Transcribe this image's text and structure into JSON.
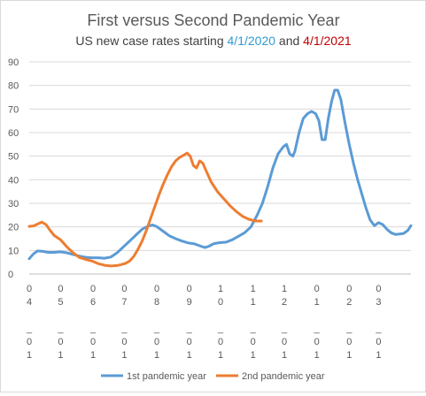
{
  "chart_data": {
    "type": "line",
    "title": "First versus Second Pandemic Year",
    "subtitle": {
      "prefix": "US new case rates starting ",
      "date1": "4/1/2020",
      "joiner": " and ",
      "date2": "4/1/2021"
    },
    "subtitle_colors": {
      "text": "#404040",
      "date1": "#2e9bd2",
      "date2": "#c00000"
    },
    "xlabel": "",
    "ylabel": "",
    "ylim": [
      0,
      90
    ],
    "yticks": [
      0,
      10,
      20,
      30,
      40,
      50,
      60,
      70,
      80,
      90
    ],
    "x_unit": "day index from start date (0 = April 1)",
    "x_range": [
      0,
      365
    ],
    "xticks": [
      {
        "x": 0,
        "lines": [
          "0",
          "4",
          "",
          "_",
          "0",
          "1"
        ]
      },
      {
        "x": 30,
        "lines": [
          "0",
          "5",
          "",
          "_",
          "0",
          "1"
        ]
      },
      {
        "x": 61,
        "lines": [
          "0",
          "6",
          "",
          "_",
          "0",
          "1"
        ]
      },
      {
        "x": 91,
        "lines": [
          "0",
          "7",
          "",
          "_",
          "0",
          "1"
        ]
      },
      {
        "x": 122,
        "lines": [
          "0",
          "8",
          "",
          "_",
          "0",
          "1"
        ]
      },
      {
        "x": 153,
        "lines": [
          "0",
          "9",
          "",
          "_",
          "0",
          "1"
        ]
      },
      {
        "x": 183,
        "lines": [
          "1",
          "0",
          "",
          "_",
          "0",
          "1"
        ]
      },
      {
        "x": 214,
        "lines": [
          "1",
          "1",
          "",
          "_",
          "0",
          "1"
        ]
      },
      {
        "x": 244,
        "lines": [
          "1",
          "2",
          "",
          "_",
          "0",
          "1"
        ]
      },
      {
        "x": 275,
        "lines": [
          "0",
          "1",
          "",
          "_",
          "0",
          "1"
        ]
      },
      {
        "x": 306,
        "lines": [
          "0",
          "2",
          "",
          "_",
          "0",
          "1"
        ]
      },
      {
        "x": 334,
        "lines": [
          "0",
          "3",
          "",
          "_",
          "0",
          "1"
        ]
      }
    ],
    "grid": "horizontal",
    "legend_position": "bottom",
    "series": [
      {
        "name": "1st pandemic year",
        "color": "#5b9bd5",
        "points": [
          [
            0,
            6.5
          ],
          [
            4,
            8.5
          ],
          [
            8,
            9.8
          ],
          [
            13,
            9.6
          ],
          [
            18,
            9.2
          ],
          [
            24,
            9.2
          ],
          [
            30,
            9.4
          ],
          [
            36,
            9
          ],
          [
            42,
            8.3
          ],
          [
            48,
            7.6
          ],
          [
            54,
            7.1
          ],
          [
            60,
            6.9
          ],
          [
            66,
            6.9
          ],
          [
            72,
            6.7
          ],
          [
            78,
            7.2
          ],
          [
            84,
            9
          ],
          [
            90,
            11.5
          ],
          [
            96,
            14
          ],
          [
            102,
            16.5
          ],
          [
            108,
            19
          ],
          [
            114,
            20.4
          ],
          [
            118,
            20.8
          ],
          [
            122,
            20.1
          ],
          [
            128,
            18.2
          ],
          [
            134,
            16.2
          ],
          [
            140,
            15
          ],
          [
            146,
            14
          ],
          [
            152,
            13.2
          ],
          [
            158,
            12.8
          ],
          [
            164,
            11.8
          ],
          [
            168,
            11.2
          ],
          [
            172,
            11.8
          ],
          [
            176,
            12.8
          ],
          [
            182,
            13.3
          ],
          [
            188,
            13.5
          ],
          [
            194,
            14.5
          ],
          [
            200,
            16
          ],
          [
            206,
            17.5
          ],
          [
            212,
            20
          ],
          [
            218,
            25
          ],
          [
            223,
            30
          ],
          [
            228,
            37
          ],
          [
            233,
            45
          ],
          [
            238,
            51
          ],
          [
            243,
            54
          ],
          [
            246,
            55
          ],
          [
            249,
            51
          ],
          [
            252,
            50
          ],
          [
            254,
            52
          ],
          [
            258,
            60
          ],
          [
            262,
            66
          ],
          [
            266,
            68
          ],
          [
            270,
            69
          ],
          [
            274,
            68
          ],
          [
            277,
            65
          ],
          [
            280,
            57
          ],
          [
            283,
            57
          ],
          [
            286,
            66
          ],
          [
            289,
            73
          ],
          [
            292,
            78
          ],
          [
            295,
            78
          ],
          [
            298,
            74
          ],
          [
            302,
            64
          ],
          [
            306,
            55
          ],
          [
            310,
            47
          ],
          [
            314,
            40
          ],
          [
            318,
            34
          ],
          [
            322,
            28
          ],
          [
            326,
            23
          ],
          [
            330,
            20.5
          ],
          [
            334,
            21.8
          ],
          [
            338,
            21
          ],
          [
            342,
            19
          ],
          [
            346,
            17.5
          ],
          [
            350,
            16.8
          ],
          [
            354,
            17
          ],
          [
            358,
            17.2
          ],
          [
            362,
            18.5
          ],
          [
            365,
            20.5
          ]
        ]
      },
      {
        "name": "2nd pandemic year",
        "color": "#ed7d31",
        "points": [
          [
            0,
            20.2
          ],
          [
            4,
            20.4
          ],
          [
            8,
            21.2
          ],
          [
            12,
            22
          ],
          [
            16,
            21
          ],
          [
            20,
            18.5
          ],
          [
            24,
            16.3
          ],
          [
            30,
            14.5
          ],
          [
            36,
            11.5
          ],
          [
            42,
            9
          ],
          [
            48,
            7
          ],
          [
            54,
            6.2
          ],
          [
            60,
            5.5
          ],
          [
            66,
            4.4
          ],
          [
            72,
            3.7
          ],
          [
            78,
            3.4
          ],
          [
            84,
            3.6
          ],
          [
            88,
            4
          ],
          [
            92,
            4.5
          ],
          [
            96,
            5.5
          ],
          [
            100,
            7.5
          ],
          [
            104,
            10.5
          ],
          [
            108,
            14
          ],
          [
            112,
            18.5
          ],
          [
            116,
            23.5
          ],
          [
            120,
            28.5
          ],
          [
            124,
            33.5
          ],
          [
            128,
            38
          ],
          [
            132,
            42
          ],
          [
            136,
            45.5
          ],
          [
            140,
            48
          ],
          [
            144,
            49.5
          ],
          [
            148,
            50.5
          ],
          [
            151,
            51.3
          ],
          [
            154,
            50
          ],
          [
            157,
            46
          ],
          [
            160,
            45
          ],
          [
            163,
            48
          ],
          [
            166,
            47
          ],
          [
            170,
            43
          ],
          [
            174,
            39
          ],
          [
            180,
            35
          ],
          [
            186,
            32
          ],
          [
            192,
            29
          ],
          [
            198,
            26.5
          ],
          [
            204,
            24.5
          ],
          [
            210,
            23.2
          ],
          [
            216,
            22.5
          ],
          [
            222,
            22.5
          ]
        ]
      }
    ]
  }
}
